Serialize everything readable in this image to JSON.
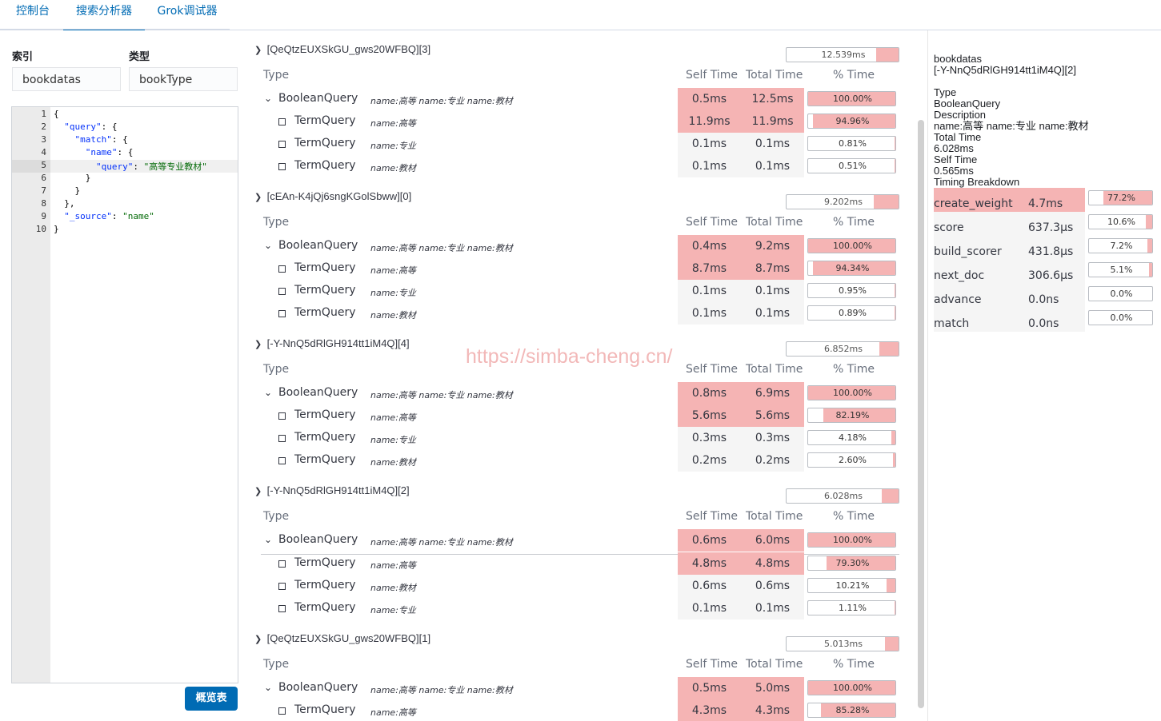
{
  "nav": {
    "tabs": [
      "控制台",
      "搜索分析器",
      "Grok调试器"
    ],
    "active_index": 1
  },
  "form": {
    "index_label": "索引",
    "index_value": "bookdatas",
    "type_label": "类型",
    "type_value": "bookType",
    "button": "概览表"
  },
  "editor": {
    "line_numbers": [
      "1",
      "2",
      "3",
      "4",
      "5",
      "6",
      "7",
      "8",
      "9",
      "10"
    ],
    "active_line": 5,
    "lines": [
      "{",
      "  \"query\": {",
      "    \"match\": {",
      "      \"name\": {",
      "        \"query\": \"高等专业教材\"",
      "      }",
      "    }",
      "  },",
      "  \"_source\": \"name\"",
      "}"
    ]
  },
  "headers": {
    "type": "Type",
    "self_time": "Self Time",
    "total_time": "Total Time",
    "pct_time": "% Time"
  },
  "shards": [
    {
      "title": "[QeQtzEUXSkGU_gws20WFBQ][3]",
      "total": "12.539ms",
      "fraction": 0.2,
      "rows": [
        {
          "type": "BooleanQuery",
          "desc": "name:高等 name:专业 name:教材",
          "self": "0.5ms",
          "total": "12.5ms",
          "pct": "100.00%",
          "fraction": 1.0,
          "hot": true,
          "root": true
        },
        {
          "type": "TermQuery",
          "desc": "name:高等",
          "self": "11.9ms",
          "total": "11.9ms",
          "pct": "94.96%",
          "fraction": 0.9496,
          "hot": true
        },
        {
          "type": "TermQuery",
          "desc": "name:专业",
          "self": "0.1ms",
          "total": "0.1ms",
          "pct": "0.81%",
          "fraction": 0.0081,
          "hot": false
        },
        {
          "type": "TermQuery",
          "desc": "name:教材",
          "self": "0.1ms",
          "total": "0.1ms",
          "pct": "0.51%",
          "fraction": 0.0051,
          "hot": false
        }
      ]
    },
    {
      "title": "[cEAn-K4jQj6sngKGolSbww][0]",
      "total": "9.202ms",
      "fraction": 0.22,
      "rows": [
        {
          "type": "BooleanQuery",
          "desc": "name:高等 name:专业 name:教材",
          "self": "0.4ms",
          "total": "9.2ms",
          "pct": "100.00%",
          "fraction": 1.0,
          "hot": true,
          "root": true
        },
        {
          "type": "TermQuery",
          "desc": "name:高等",
          "self": "8.7ms",
          "total": "8.7ms",
          "pct": "94.34%",
          "fraction": 0.9434,
          "hot": true
        },
        {
          "type": "TermQuery",
          "desc": "name:专业",
          "self": "0.1ms",
          "total": "0.1ms",
          "pct": "0.95%",
          "fraction": 0.0095,
          "hot": false
        },
        {
          "type": "TermQuery",
          "desc": "name:教材",
          "self": "0.1ms",
          "total": "0.1ms",
          "pct": "0.89%",
          "fraction": 0.0089,
          "hot": false
        }
      ]
    },
    {
      "title": "[-Y-NnQ5dRlGH914tt1iM4Q][4]",
      "total": "6.852ms",
      "fraction": 0.17,
      "rows": [
        {
          "type": "BooleanQuery",
          "desc": "name:高等 name:专业 name:教材",
          "self": "0.8ms",
          "total": "6.9ms",
          "pct": "100.00%",
          "fraction": 1.0,
          "hot": true,
          "root": true
        },
        {
          "type": "TermQuery",
          "desc": "name:高等",
          "self": "5.6ms",
          "total": "5.6ms",
          "pct": "82.19%",
          "fraction": 0.8219,
          "hot": true
        },
        {
          "type": "TermQuery",
          "desc": "name:专业",
          "self": "0.3ms",
          "total": "0.3ms",
          "pct": "4.18%",
          "fraction": 0.0418,
          "hot": false
        },
        {
          "type": "TermQuery",
          "desc": "name:教材",
          "self": "0.2ms",
          "total": "0.2ms",
          "pct": "2.60%",
          "fraction": 0.026,
          "hot": false
        }
      ]
    },
    {
      "title": "[-Y-NnQ5dRlGH914tt1iM4Q][2]",
      "total": "6.028ms",
      "fraction": 0.15,
      "rows": [
        {
          "type": "BooleanQuery",
          "desc": "name:高等 name:专业 name:教材",
          "self": "0.6ms",
          "total": "6.0ms",
          "pct": "100.00%",
          "fraction": 1.0,
          "hot": true,
          "root": true
        },
        {
          "type": "TermQuery",
          "desc": "name:高等",
          "self": "4.8ms",
          "total": "4.8ms",
          "pct": "79.30%",
          "fraction": 0.793,
          "hot": true
        },
        {
          "type": "TermQuery",
          "desc": "name:教材",
          "self": "0.6ms",
          "total": "0.6ms",
          "pct": "10.21%",
          "fraction": 0.1021,
          "hot": false
        },
        {
          "type": "TermQuery",
          "desc": "name:专业",
          "self": "0.1ms",
          "total": "0.1ms",
          "pct": "1.11%",
          "fraction": 0.0111,
          "hot": false
        }
      ]
    },
    {
      "title": "[QeQtzEUXSkGU_gws20WFBQ][1]",
      "total": "5.013ms",
      "fraction": 0.12,
      "rows": [
        {
          "type": "BooleanQuery",
          "desc": "name:高等 name:专业 name:教材",
          "self": "0.5ms",
          "total": "5.0ms",
          "pct": "100.00%",
          "fraction": 1.0,
          "hot": true,
          "root": true
        },
        {
          "type": "TermQuery",
          "desc": "name:高等",
          "self": "4.3ms",
          "total": "4.3ms",
          "pct": "85.28%",
          "fraction": 0.8528,
          "hot": true
        }
      ]
    }
  ],
  "detail": {
    "index": "bookdatas",
    "shard": "[-Y-NnQ5dRlGH914tt1iM4Q][2]",
    "type_label": "Type",
    "type_value": "BooleanQuery",
    "description_label": "Description",
    "description_value": "name:高等 name:专业 name:教材",
    "total_time_label": "Total Time",
    "total_time_value": "6.028ms",
    "self_time_label": "Self Time",
    "self_time_value": "0.565ms",
    "breakdown_label": "Timing Breakdown",
    "breakdown": [
      {
        "name": "create_weight",
        "value": "4.7ms",
        "pct": "77.2%",
        "fraction": 0.772,
        "hot": true
      },
      {
        "name": "score",
        "value": "637.3μs",
        "pct": "10.6%",
        "fraction": 0.106,
        "hot": false
      },
      {
        "name": "build_scorer",
        "value": "431.8μs",
        "pct": "7.2%",
        "fraction": 0.072,
        "hot": false
      },
      {
        "name": "next_doc",
        "value": "306.6μs",
        "pct": "5.1%",
        "fraction": 0.051,
        "hot": false
      },
      {
        "name": "advance",
        "value": "0.0ns",
        "pct": "0.0%",
        "fraction": 0.0,
        "hot": false
      },
      {
        "name": "match",
        "value": "0.0ns",
        "pct": "0.0%",
        "fraction": 0.0,
        "hot": false
      }
    ]
  },
  "watermark": "https://simba-cheng.cn/",
  "colors": {
    "accent": "#006bb4",
    "hot_cell": "#f5b4b4",
    "cool_cell": "#f5f5f5"
  }
}
